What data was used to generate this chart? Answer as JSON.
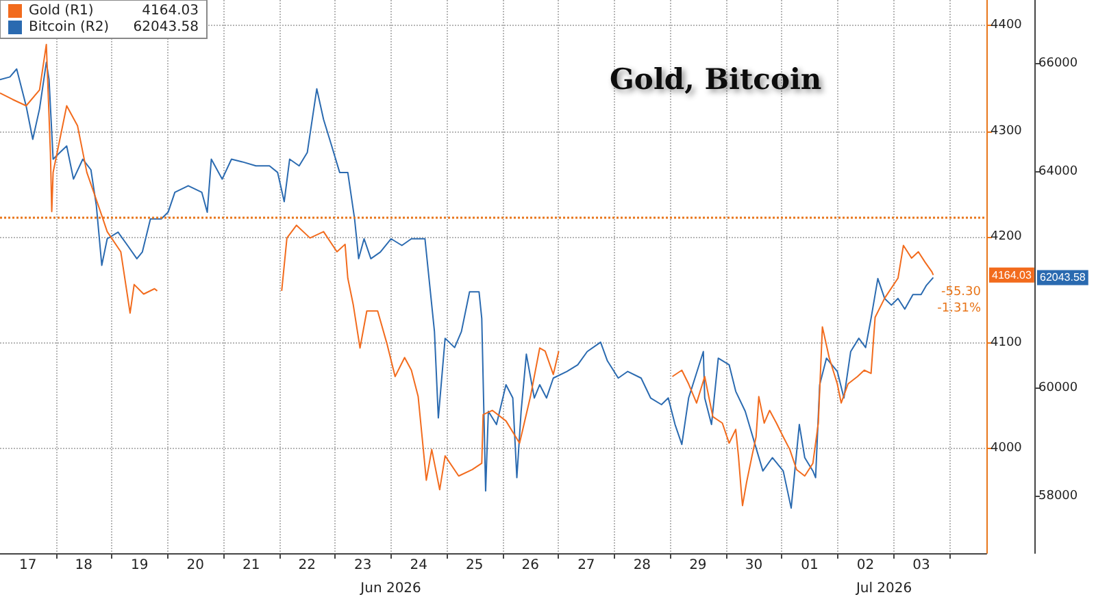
{
  "chart_data": {
    "type": "line",
    "title": "Gold, Bitcoin",
    "xlim": [
      "2026-06-17T00:00",
      "2026-07-04T16:00"
    ],
    "xticks": [
      {
        "value": "2026-06-17T12:00",
        "label": "17"
      },
      {
        "value": "2026-06-18T00:00",
        "label": null
      },
      {
        "value": "2026-06-18T12:00",
        "label": "18"
      },
      {
        "value": "2026-06-19T00:00",
        "label": null
      },
      {
        "value": "2026-06-19T12:00",
        "label": "19"
      },
      {
        "value": "2026-06-20T00:00",
        "label": null
      },
      {
        "value": "2026-06-20T12:00",
        "label": "20"
      },
      {
        "value": "2026-06-21T00:00",
        "label": null
      },
      {
        "value": "2026-06-21T12:00",
        "label": "21"
      },
      {
        "value": "2026-06-22T00:00",
        "label": null
      },
      {
        "value": "2026-06-22T12:00",
        "label": "22"
      },
      {
        "value": "2026-06-23T00:00",
        "label": null
      },
      {
        "value": "2026-06-23T12:00",
        "label": "23"
      },
      {
        "value": "2026-06-24T00:00",
        "label": null
      },
      {
        "value": "2026-06-24T12:00",
        "label": "24"
      },
      {
        "value": "2026-06-25T00:00",
        "label": null
      },
      {
        "value": "2026-06-25T12:00",
        "label": "25"
      },
      {
        "value": "2026-06-26T00:00",
        "label": null
      },
      {
        "value": "2026-06-26T12:00",
        "label": "26"
      },
      {
        "value": "2026-06-27T00:00",
        "label": null
      },
      {
        "value": "2026-06-27T12:00",
        "label": "27"
      },
      {
        "value": "2026-06-28T00:00",
        "label": null
      },
      {
        "value": "2026-06-28T12:00",
        "label": "28"
      },
      {
        "value": "2026-06-29T00:00",
        "label": null
      },
      {
        "value": "2026-06-29T12:00",
        "label": "29"
      },
      {
        "value": "2026-06-30T00:00",
        "label": null
      },
      {
        "value": "2026-06-30T12:00",
        "label": "30"
      },
      {
        "value": "2026-07-01T00:00",
        "label": null
      },
      {
        "value": "2026-07-01T12:00",
        "label": "01"
      },
      {
        "value": "2026-07-02T00:00",
        "label": null
      },
      {
        "value": "2026-07-02T12:00",
        "label": "02"
      },
      {
        "value": "2026-07-03T00:00",
        "label": null
      },
      {
        "value": "2026-07-03T12:00",
        "label": "03"
      },
      {
        "value": "2026-07-04T00:00",
        "label": null
      }
    ],
    "ylim": [
      3901,
      4424
    ],
    "yticks": [
      4000,
      4100,
      4200,
      4300,
      4400
    ],
    "y2lim": [
      56945,
      67178
    ],
    "y2ticks": [
      58000,
      60000,
      64000,
      66000
    ],
    "grid": true,
    "legend": "top left",
    "ref_lines": [
      {
        "axis": "y",
        "value": 4219,
        "color": "#e8751a",
        "line_style": "dotted"
      }
    ],
    "annotations": [
      "4164.03",
      "62043.58",
      "-55.30",
      "-1.31%",
      "Jun 2026",
      "Jul 2026"
    ],
    "series": [
      {
        "name": "Gold (R1)",
        "color": "#f26b1d",
        "x": [
          "2026-06-17T00:00",
          "2026-06-17T05:25",
          "2026-06-17T11:15",
          "2026-06-17T17:00",
          "2026-06-17T19:55",
          "2026-06-17T21:40",
          "2026-06-17T22:15",
          "2026-06-17T22:50",
          "2026-06-18T04:40",
          "2026-06-18T09:20",
          "2026-06-18T13:20",
          "2026-06-18T19:10",
          "2026-06-18T22:05",
          "2026-06-19T03:55",
          "2026-06-19T07:55",
          "2026-06-19T09:40",
          "2026-06-19T13:45",
          "2026-06-19T18:25",
          "2026-06-19T19:35",
          "2026-06-20T12:00",
          "2026-06-22T01:05",
          "2026-06-22T03:20",
          "2026-06-22T07:25",
          "2026-06-22T13:15",
          "2026-06-22T19:05",
          "2026-06-23T00:50",
          "2026-06-23T04:20",
          "2026-06-23T05:30",
          "2026-06-23T07:50",
          "2026-06-23T10:45",
          "2026-06-23T13:40",
          "2026-06-23T18:20",
          "2026-06-23T22:20",
          "2026-06-24T01:50",
          "2026-06-24T05:55",
          "2026-06-24T08:50",
          "2026-06-24T11:45",
          "2026-06-24T15:15",
          "2026-06-24T17:35",
          "2026-06-24T21:00",
          "2026-06-24T23:20",
          "2026-06-25T05:10",
          "2026-06-25T11:00",
          "2026-06-25T15:05",
          "2026-06-25T15:40",
          "2026-06-25T19:40",
          "2026-06-26T01:30",
          "2026-06-26T07:20",
          "2026-06-26T12:00",
          "2026-06-26T16:00",
          "2026-06-26T18:20",
          "2026-06-26T21:50",
          "2026-06-27T00:10",
          "2026-06-28T00:00",
          "2026-06-29T01:00",
          "2026-06-29T05:05",
          "2026-06-29T08:00",
          "2026-06-29T11:25",
          "2026-06-29T14:55",
          "2026-06-29T18:25",
          "2026-06-29T22:30",
          "2026-06-30T01:25",
          "2026-06-30T04:15",
          "2026-06-30T05:25",
          "2026-06-30T06:35",
          "2026-06-30T07:10",
          "2026-06-30T08:55",
          "2026-06-30T11:15",
          "2026-06-30T13:00",
          "2026-06-30T14:10",
          "2026-06-30T16:30",
          "2026-06-30T18:50",
          "2026-06-30T21:45",
          "2026-07-01T00:40",
          "2026-07-01T03:30",
          "2026-07-01T06:25",
          "2026-07-01T09:55",
          "2026-07-01T13:25",
          "2026-07-01T15:45",
          "2026-07-01T17:30",
          "2026-07-01T20:25",
          "2026-07-01T23:55",
          "2026-07-02T01:35",
          "2026-07-02T04:30",
          "2026-07-02T08:35",
          "2026-07-02T11:30",
          "2026-07-02T14:25",
          "2026-07-02T16:10",
          "2026-07-02T20:15",
          "2026-07-03T02:00",
          "2026-07-03T04:20",
          "2026-07-03T07:50",
          "2026-07-03T10:45",
          "2026-07-03T13:40",
          "2026-07-03T16:35",
          "2026-07-03T17:10"
        ],
        "values": [
          4336,
          4330,
          4324,
          4339,
          4382,
          4280,
          4224,
          4261,
          4324,
          4305,
          4261,
          4224,
          4205,
          4186,
          4128,
          4155,
          4146,
          4151,
          4149,
          null,
          4149,
          4199,
          4211,
          4199,
          4205,
          4186,
          4193,
          4161,
          4136,
          4095,
          4130,
          4130,
          4099,
          4068,
          4086,
          4074,
          4049,
          3970,
          3999,
          3961,
          3993,
          3974,
          3980,
          3986,
          4032,
          4036,
          4026,
          4005,
          4049,
          4095,
          4092,
          4070,
          4092,
          null,
          4068,
          4074,
          4061,
          4043,
          4068,
          4030,
          4024,
          4005,
          4018,
          3993,
          3961,
          3946,
          3968,
          3993,
          4011,
          4049,
          4024,
          4036,
          4024,
          4011,
          3999,
          3980,
          3974,
          3986,
          4024,
          4115,
          4086,
          4061,
          4043,
          4061,
          4068,
          4074,
          4071,
          4124,
          4142,
          4161,
          4192,
          4180,
          4186,
          4176,
          4167,
          4164.03
        ]
      },
      {
        "name": "Bitcoin (R2)",
        "color": "#2a6ab0",
        "axis": "y2",
        "x": [
          "2026-06-17T00:00",
          "2026-06-17T04:15",
          "2026-06-17T07:10",
          "2026-06-17T11:15",
          "2026-06-17T14:05",
          "2026-06-17T17:00",
          "2026-06-17T19:55",
          "2026-06-17T21:05",
          "2026-06-17T22:50",
          "2026-06-18T01:45",
          "2026-06-18T04:40",
          "2026-06-18T07:35",
          "2026-06-18T11:35",
          "2026-06-18T15:05",
          "2026-06-18T17:25",
          "2026-06-18T19:45",
          "2026-06-18T22:05",
          "2026-06-19T02:45",
          "2026-06-19T06:50",
          "2026-06-19T10:50",
          "2026-06-19T13:10",
          "2026-06-19T16:40",
          "2026-06-19T21:20",
          "2026-06-20T00:15",
          "2026-06-20T03:10",
          "2026-06-20T08:55",
          "2026-06-20T14:45",
          "2026-06-20T17:05",
          "2026-06-20T18:50",
          "2026-06-20T23:30",
          "2026-06-21T03:30",
          "2026-06-21T08:10",
          "2026-06-21T14:00",
          "2026-06-21T19:50",
          "2026-06-21T23:20",
          "2026-06-22T02:10",
          "2026-06-22T04:30",
          "2026-06-22T08:35",
          "2026-06-22T12:05",
          "2026-06-22T16:10",
          "2026-06-22T19:05",
          "2026-06-22T22:35",
          "2026-06-23T02:00",
          "2026-06-23T05:30",
          "2026-06-23T08:25",
          "2026-06-23T10:10",
          "2026-06-23T12:30",
          "2026-06-23T15:25",
          "2026-06-23T19:30",
          "2026-06-24T00:05",
          "2026-06-24T04:45",
          "2026-06-24T08:50",
          "2026-06-24T14:40",
          "2026-06-24T16:25",
          "2026-06-24T18:45",
          "2026-06-24T20:25",
          "2026-06-24T23:20",
          "2026-06-25T03:25",
          "2026-06-25T06:20",
          "2026-06-25T09:50",
          "2026-06-25T13:55",
          "2026-06-25T15:05",
          "2026-06-25T16:45",
          "2026-06-25T17:55",
          "2026-06-25T21:25",
          "2026-06-26T01:30",
          "2026-06-26T04:25",
          "2026-06-26T06:10",
          "2026-06-26T08:00",
          "2026-06-26T10:15",
          "2026-06-26T13:40",
          "2026-06-26T16:00",
          "2026-06-26T18:55",
          "2026-06-26T21:50",
          "2026-06-27T03:40",
          "2026-06-27T08:20",
          "2026-06-27T12:25",
          "2026-06-27T18:10",
          "2026-06-27T21:05",
          "2026-06-28T01:45",
          "2026-06-28T05:50",
          "2026-06-28T11:35",
          "2026-06-28T15:40",
          "2026-06-28T20:20",
          "2026-06-28T23:15",
          "2026-06-29T02:10",
          "2026-06-29T05:05",
          "2026-06-29T08:00",
          "2026-06-29T14:20",
          "2026-06-29T14:55",
          "2026-06-29T17:50",
          "2026-06-29T20:45",
          "2026-06-30T01:25",
          "2026-06-30T04:15",
          "2026-06-30T08:20",
          "2026-06-30T15:55",
          "2026-06-30T20:00",
          "2026-07-01T00:40",
          "2026-07-01T04:05",
          "2026-07-01T07:35",
          "2026-07-01T09:55",
          "2026-07-01T13:25",
          "2026-07-01T14:35",
          "2026-07-01T16:20",
          "2026-07-01T19:15",
          "2026-07-01T23:55",
          "2026-07-02T02:45",
          "2026-07-02T05:40",
          "2026-07-02T09:10",
          "2026-07-02T12:05",
          "2026-07-02T14:25",
          "2026-07-02T17:20",
          "2026-07-02T20:15",
          "2026-07-02T23:10",
          "2026-07-03T02:00",
          "2026-07-03T04:55",
          "2026-07-03T08:25",
          "2026-07-03T11:55",
          "2026-07-03T14:15",
          "2026-07-03T17:10"
        ],
        "values": [
          65706,
          65755,
          65902,
          65215,
          64601,
          65166,
          66025,
          65706,
          64233,
          64356,
          64478,
          63865,
          64233,
          64037,
          63374,
          62270,
          62761,
          62883,
          62638,
          62393,
          62515,
          63129,
          63129,
          63251,
          63620,
          63742,
          63620,
          63251,
          64233,
          63865,
          64233,
          64184,
          64110,
          64110,
          63988,
          63448,
          64233,
          64110,
          64356,
          65534,
          64969,
          64478,
          63988,
          63988,
          63129,
          62393,
          62761,
          62393,
          62515,
          62761,
          62638,
          62761,
          62761,
          62025,
          61043,
          59448,
          60920,
          60749,
          61043,
          61780,
          61780,
          61288,
          58098,
          59570,
          59325,
          60061,
          59816,
          58343,
          59570,
          60626,
          59816,
          60061,
          59816,
          60184,
          60307,
          60430,
          60675,
          60847,
          60503,
          60184,
          60307,
          60184,
          59816,
          59693,
          59816,
          59325,
          58957,
          59816,
          60675,
          59816,
          59325,
          60552,
          60430,
          59939,
          59570,
          58466,
          58712,
          58466,
          57779,
          59325,
          58712,
          58466,
          58343,
          60061,
          60552,
          60307,
          59816,
          60675,
          60920,
          60749,
          61288,
          62025,
          61657,
          61534,
          61657,
          61460,
          61730,
          61730,
          61902,
          62043.58
        ]
      }
    ]
  }
}
